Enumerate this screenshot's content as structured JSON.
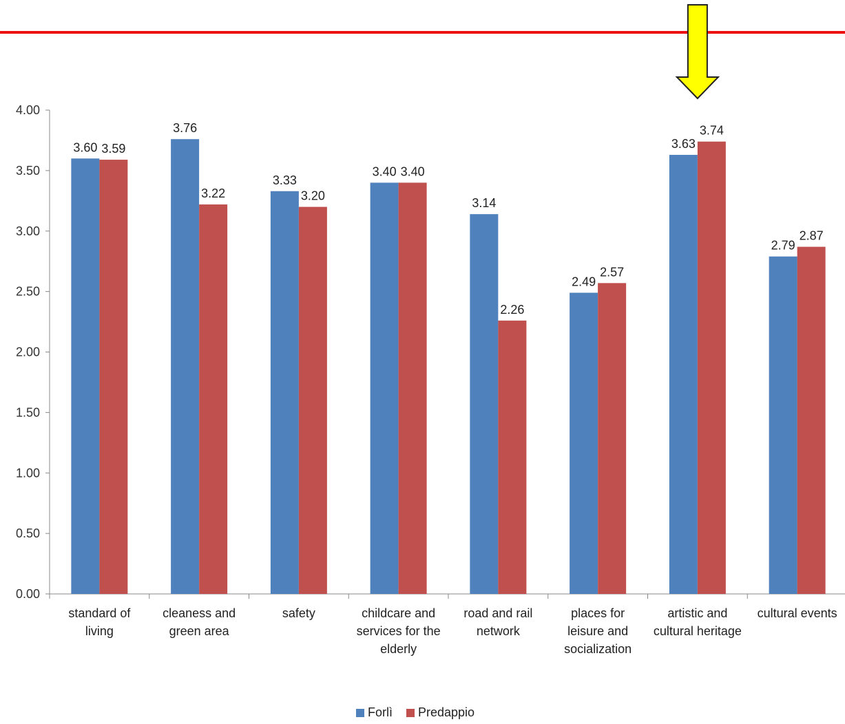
{
  "chart_data": {
    "type": "bar",
    "categories": [
      [
        "standard of",
        "living"
      ],
      [
        "cleaness and",
        "green area"
      ],
      [
        "safety"
      ],
      [
        "childcare and",
        "services for the",
        "elderly"
      ],
      [
        "road and rail",
        "network"
      ],
      [
        "places for",
        "leisure and",
        "socialization"
      ],
      [
        "artistic and",
        "cultural heritage"
      ],
      [
        "cultural events"
      ]
    ],
    "series": [
      {
        "name": "Forlì",
        "color": "#4f81bd",
        "values": [
          3.6,
          3.76,
          3.33,
          3.4,
          3.14,
          2.49,
          3.63,
          2.79
        ],
        "labels": [
          "3.60",
          "3.76",
          "3.33",
          "3.40",
          "3.14",
          "2.49",
          "3.63",
          "2.79"
        ]
      },
      {
        "name": "Predappio",
        "color": "#c0504d",
        "values": [
          3.59,
          3.22,
          3.2,
          3.4,
          2.26,
          2.57,
          3.74,
          2.87
        ],
        "labels": [
          "3.59",
          "3.22",
          "3.20",
          "3.40",
          "2.26",
          "2.57",
          "3.74",
          "2.87"
        ]
      }
    ],
    "yticks": [
      "0.00",
      "0.50",
      "1.00",
      "1.50",
      "2.00",
      "2.50",
      "3.00",
      "3.50",
      "4.00"
    ],
    "ylim": [
      0,
      4
    ],
    "grid": false,
    "legend": "bottom-center",
    "title": "",
    "xlabel": "",
    "ylabel": ""
  },
  "decorations": {
    "top_rule_color": "#ee1111",
    "highlight_arrow": {
      "category_index": 6,
      "fill": "#ffff00",
      "stroke": "#222222"
    }
  }
}
